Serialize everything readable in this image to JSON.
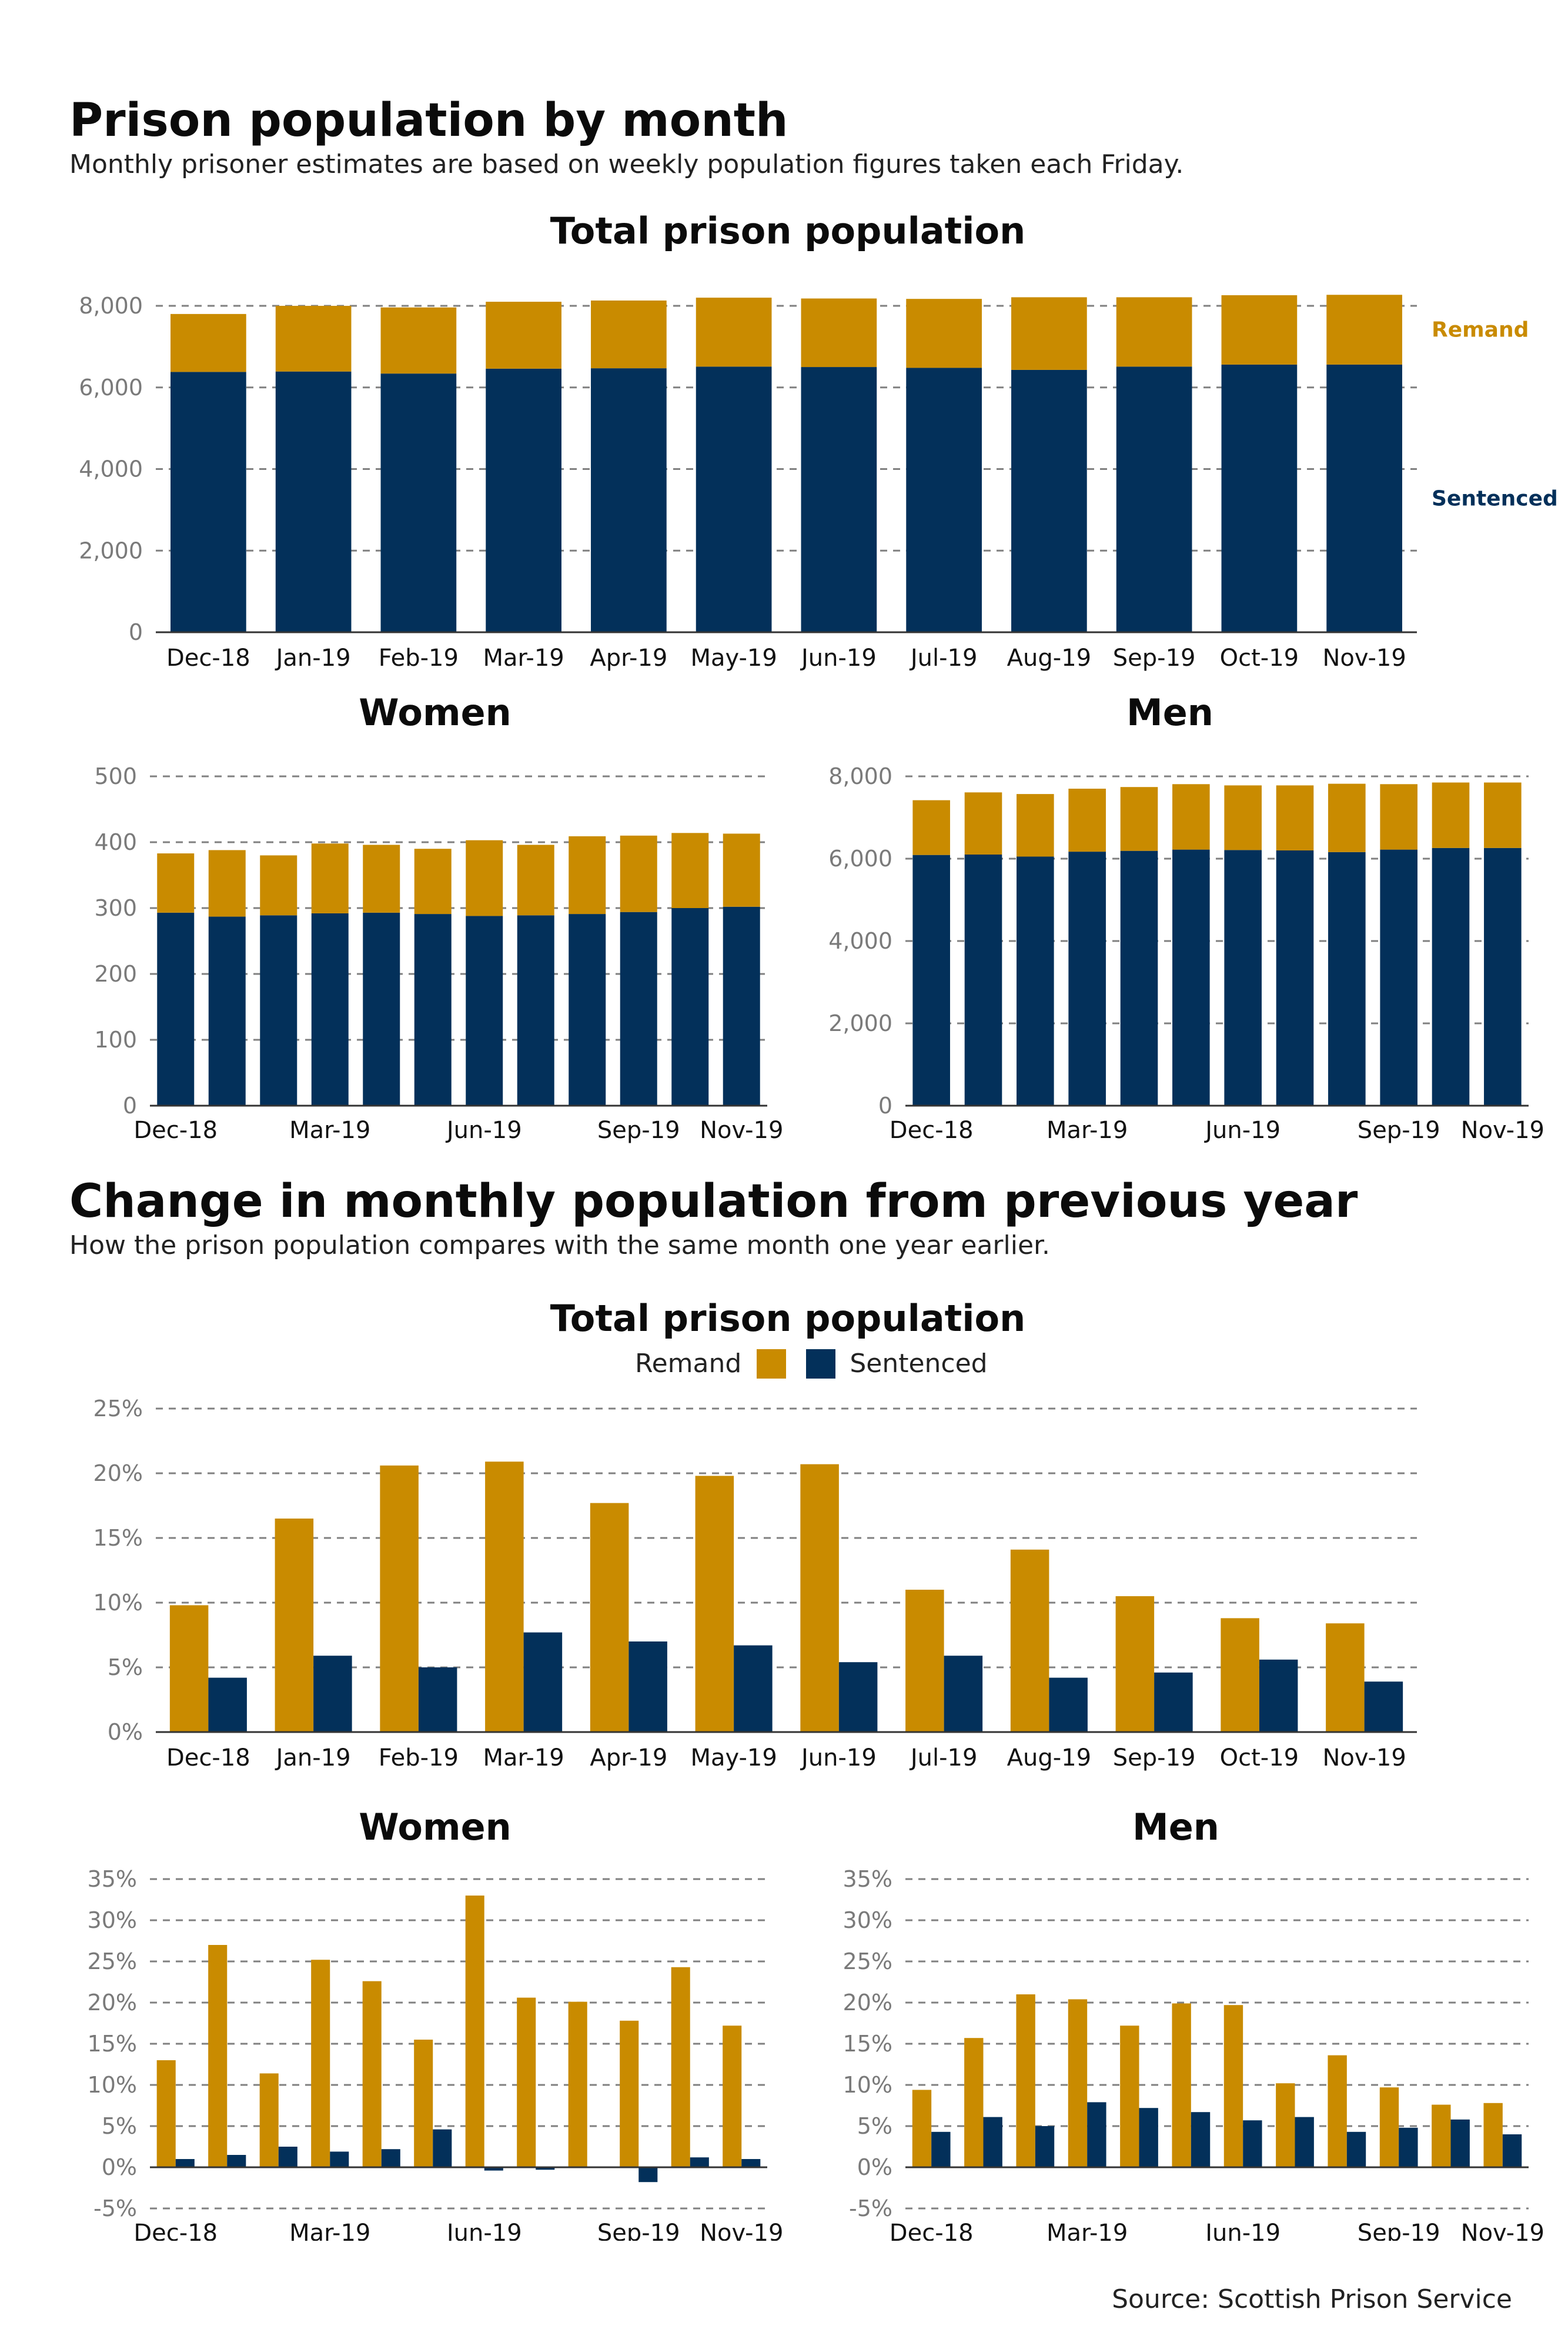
{
  "section1": {
    "title": "Prison population by month",
    "subtitle": "Monthly prisoner estimates are based on weekly population figures taken each Friday."
  },
  "section2": {
    "title": "Change in monthly population from previous year",
    "subtitle": "How the prison population compares with the same month one year earlier."
  },
  "legend": {
    "remand": "Remand",
    "sentenced": "Sentenced"
  },
  "source": "Source: Scottish Prison Service",
  "colors": {
    "remand": "#c98b00",
    "sentenced": "#03305a",
    "grid": "#808080",
    "axis": "#333333"
  },
  "chart_data": [
    {
      "id": "total-pop",
      "type": "bar",
      "stacked": true,
      "title": "Total prison population",
      "categories": [
        "Dec-18",
        "Jan-19",
        "Feb-19",
        "Mar-19",
        "Apr-19",
        "May-19",
        "Jun-19",
        "Jul-19",
        "Aug-19",
        "Sep-19",
        "Oct-19",
        "Nov-19"
      ],
      "xtick_labels": [
        "Dec-18",
        "Jan-19",
        "Feb-19",
        "Mar-19",
        "Apr-19",
        "May-19",
        "Jun-19",
        "Jul-19",
        "Aug-19",
        "Sep-19",
        "Oct-19",
        "Nov-19"
      ],
      "series": [
        {
          "name": "Sentenced",
          "values": [
            6380,
            6390,
            6340,
            6460,
            6470,
            6510,
            6500,
            6480,
            6430,
            6510,
            6560,
            6560
          ]
        },
        {
          "name": "Remand",
          "values": [
            1420,
            1610,
            1620,
            1640,
            1660,
            1690,
            1680,
            1690,
            1780,
            1700,
            1700,
            1710
          ]
        }
      ],
      "ylim": [
        0,
        8000
      ],
      "yticks": [
        0,
        2000,
        4000,
        6000,
        8000
      ],
      "ytick_labels": [
        "0",
        "2,000",
        "4,000",
        "6,000",
        "8,000"
      ],
      "series_labels": [
        "Remand",
        "Sentenced"
      ],
      "grid": true
    },
    {
      "id": "women-pop",
      "type": "bar",
      "stacked": true,
      "title": "Women",
      "categories": [
        "Dec-18",
        "Jan-19",
        "Feb-19",
        "Mar-19",
        "Apr-19",
        "May-19",
        "Jun-19",
        "Jul-19",
        "Aug-19",
        "Sep-19",
        "Oct-19",
        "Nov-19"
      ],
      "xtick_labels": [
        "Dec-18",
        "",
        "",
        "Mar-19",
        "",
        "",
        "Jun-19",
        "",
        "",
        "Sep-19",
        "",
        "Nov-19"
      ],
      "series": [
        {
          "name": "Sentenced",
          "values": [
            293,
            287,
            289,
            292,
            293,
            291,
            288,
            289,
            291,
            294,
            300,
            302
          ]
        },
        {
          "name": "Remand",
          "values": [
            90,
            101,
            91,
            106,
            103,
            99,
            115,
            107,
            118,
            116,
            114,
            111
          ]
        }
      ],
      "ylim": [
        0,
        500
      ],
      "yticks": [
        0,
        100,
        200,
        300,
        400,
        500
      ],
      "ytick_labels": [
        "0",
        "100",
        "200",
        "300",
        "400",
        "500"
      ],
      "grid": true
    },
    {
      "id": "men-pop",
      "type": "bar",
      "stacked": true,
      "title": "Men",
      "categories": [
        "Dec-18",
        "Jan-19",
        "Feb-19",
        "Mar-19",
        "Apr-19",
        "May-19",
        "Jun-19",
        "Jul-19",
        "Aug-19",
        "Sep-19",
        "Oct-19",
        "Nov-19"
      ],
      "xtick_labels": [
        "Dec-18",
        "",
        "",
        "Mar-19",
        "",
        "",
        "Jun-19",
        "",
        "",
        "Sep-19",
        "",
        "Nov-19"
      ],
      "series": [
        {
          "name": "Sentenced",
          "values": [
            6090,
            6100,
            6050,
            6170,
            6190,
            6220,
            6210,
            6200,
            6160,
            6220,
            6260,
            6260
          ]
        },
        {
          "name": "Remand",
          "values": [
            1330,
            1510,
            1520,
            1530,
            1550,
            1590,
            1570,
            1580,
            1660,
            1590,
            1590,
            1590
          ]
        }
      ],
      "ylim": [
        0,
        8000
      ],
      "yticks": [
        0,
        2000,
        4000,
        6000,
        8000
      ],
      "ytick_labels": [
        "0",
        "2,000",
        "4,000",
        "6,000",
        "8,000"
      ],
      "grid": true
    },
    {
      "id": "total-change",
      "type": "bar",
      "stacked": false,
      "title": "Total prison population",
      "categories": [
        "Dec-18",
        "Jan-19",
        "Feb-19",
        "Mar-19",
        "Apr-19",
        "May-19",
        "Jun-19",
        "Jul-19",
        "Aug-19",
        "Sep-19",
        "Oct-19",
        "Nov-19"
      ],
      "xtick_labels": [
        "Dec-18",
        "Jan-19",
        "Feb-19",
        "Mar-19",
        "Apr-19",
        "May-19",
        "Jun-19",
        "Jul-19",
        "Aug-19",
        "Sep-19",
        "Oct-19",
        "Nov-19"
      ],
      "series": [
        {
          "name": "Remand",
          "values": [
            9.8,
            16.5,
            20.6,
            20.9,
            17.7,
            19.8,
            20.7,
            11.0,
            14.1,
            10.5,
            8.8,
            8.4
          ]
        },
        {
          "name": "Sentenced",
          "values": [
            4.2,
            5.9,
            5.0,
            7.7,
            7.0,
            6.7,
            5.4,
            5.9,
            4.2,
            4.6,
            5.6,
            3.9
          ]
        }
      ],
      "ylim": [
        0,
        25
      ],
      "yticks": [
        0,
        5,
        10,
        15,
        20,
        25
      ],
      "ytick_labels": [
        "0%",
        "5%",
        "10%",
        "15%",
        "20%",
        "25%"
      ],
      "legend": "top-center",
      "grid": true
    },
    {
      "id": "women-change",
      "type": "bar",
      "stacked": false,
      "title": "Women",
      "categories": [
        "Dec-18",
        "Jan-19",
        "Feb-19",
        "Mar-19",
        "Apr-19",
        "May-19",
        "Jun-19",
        "Jul-19",
        "Aug-19",
        "Sep-19",
        "Oct-19",
        "Nov-19"
      ],
      "xtick_labels": [
        "Dec-18",
        "",
        "",
        "Mar-19",
        "",
        "",
        "Jun-19",
        "",
        "",
        "Sep-19",
        "",
        "Nov-19"
      ],
      "series": [
        {
          "name": "Remand",
          "values": [
            13.0,
            27.0,
            11.4,
            25.2,
            22.6,
            15.5,
            33.0,
            20.6,
            20.1,
            17.8,
            24.3,
            17.2
          ]
        },
        {
          "name": "Sentenced",
          "values": [
            1.0,
            1.5,
            2.5,
            1.9,
            2.2,
            4.6,
            -0.4,
            -0.3,
            0.0,
            -1.8,
            1.2,
            1.0
          ]
        }
      ],
      "ylim": [
        -5,
        35
      ],
      "yticks": [
        -5,
        0,
        5,
        10,
        15,
        20,
        25,
        30,
        35
      ],
      "ytick_labels": [
        "-5%",
        "0%",
        "5%",
        "10%",
        "15%",
        "20%",
        "25%",
        "30%",
        "35%"
      ],
      "grid": true
    },
    {
      "id": "men-change",
      "type": "bar",
      "stacked": false,
      "title": "Men",
      "categories": [
        "Dec-18",
        "Jan-19",
        "Feb-19",
        "Mar-19",
        "Apr-19",
        "May-19",
        "Jun-19",
        "Jul-19",
        "Aug-19",
        "Sep-19",
        "Oct-19",
        "Nov-19"
      ],
      "xtick_labels": [
        "Dec-18",
        "",
        "",
        "Mar-19",
        "",
        "",
        "Jun-19",
        "",
        "",
        "Sep-19",
        "",
        "Nov-19"
      ],
      "series": [
        {
          "name": "Remand",
          "values": [
            9.4,
            15.7,
            21.0,
            20.4,
            17.2,
            19.9,
            19.7,
            10.2,
            13.6,
            9.7,
            7.6,
            7.8
          ]
        },
        {
          "name": "Sentenced",
          "values": [
            4.3,
            6.1,
            5.0,
            7.9,
            7.2,
            6.7,
            5.7,
            6.1,
            4.3,
            4.8,
            5.8,
            4.0
          ]
        }
      ],
      "ylim": [
        -5,
        35
      ],
      "yticks": [
        -5,
        0,
        5,
        10,
        15,
        20,
        25,
        30,
        35
      ],
      "ytick_labels": [
        "-5%",
        "0%",
        "5%",
        "10%",
        "15%",
        "20%",
        "25%",
        "30%",
        "35%"
      ],
      "grid": true
    }
  ]
}
